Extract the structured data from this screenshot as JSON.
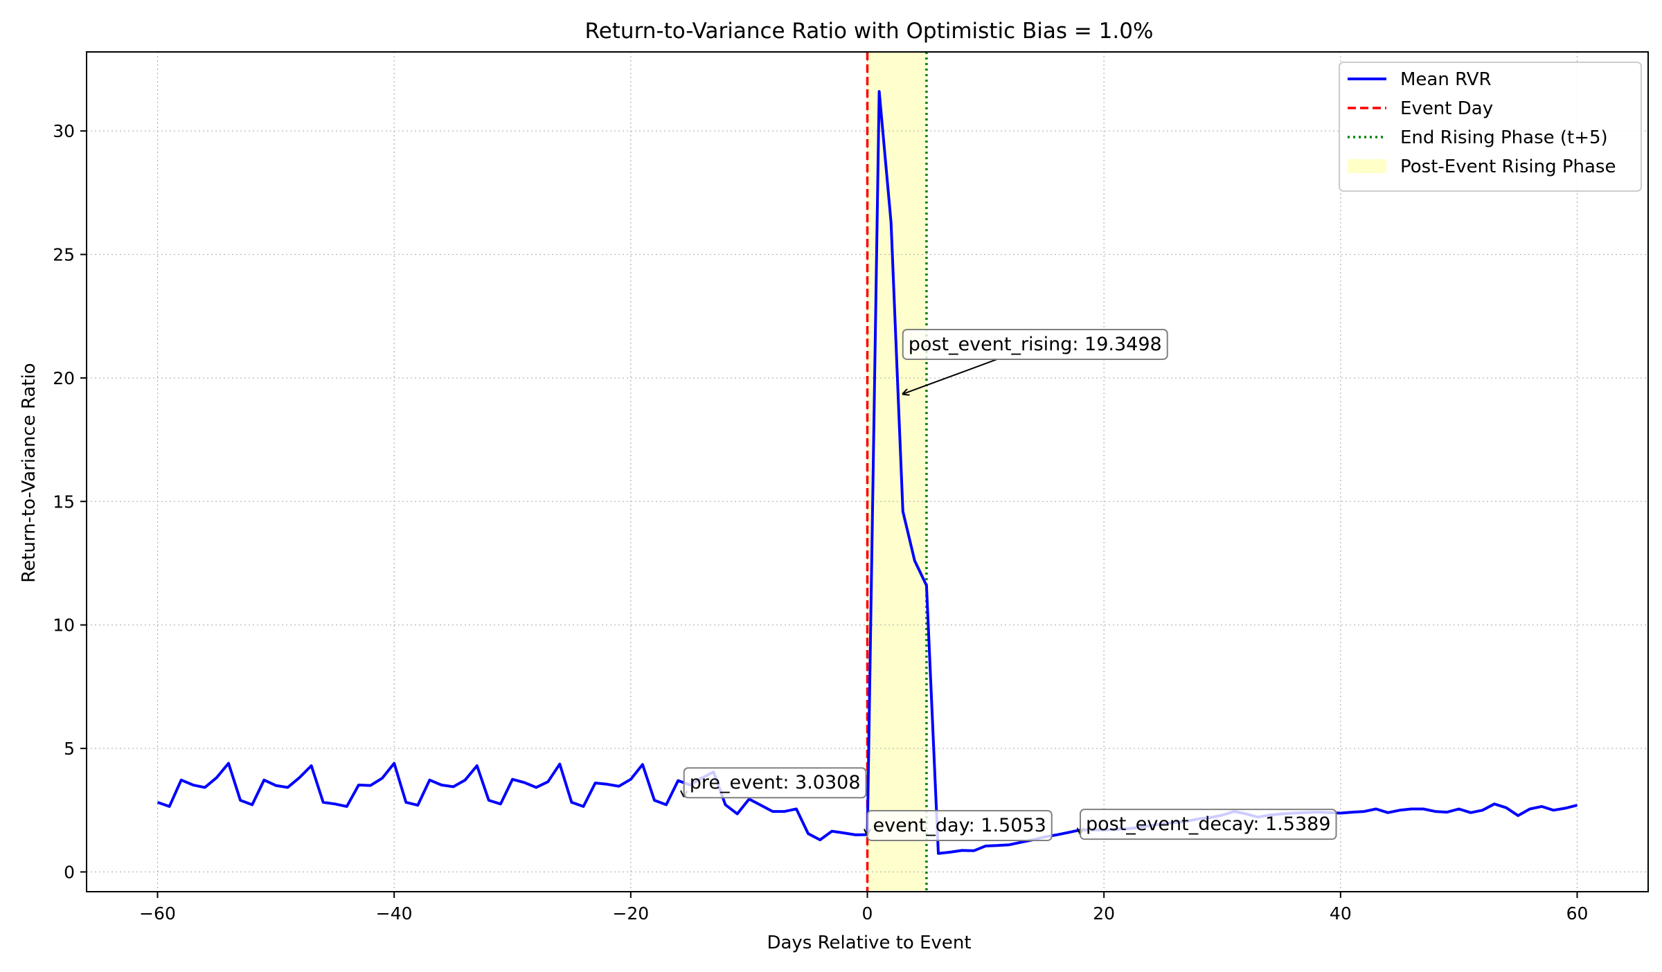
{
  "chart_data": {
    "type": "line",
    "title": "Return-to-Variance Ratio with Optimistic Bias = 1.0%",
    "xlabel": "Days Relative to Event",
    "ylabel": "Return-to-Variance Ratio",
    "xlim": [
      -66,
      66
    ],
    "ylim": [
      -0.8,
      33.2
    ],
    "x_ticks": [
      -60,
      -40,
      -20,
      0,
      20,
      40,
      60
    ],
    "x_tick_labels": [
      "−60",
      "−40",
      "−20",
      "0",
      "20",
      "40",
      "60"
    ],
    "y_ticks": [
      0,
      5,
      10,
      15,
      20,
      25,
      30
    ],
    "y_tick_labels": [
      "0",
      "5",
      "10",
      "15",
      "20",
      "25",
      "30"
    ],
    "grid": true,
    "legend_position": "top-right",
    "legend": [
      {
        "label": "Mean RVR",
        "kind": "line",
        "color": "#0000ff"
      },
      {
        "label": "Event Day",
        "kind": "dashed",
        "color": "#ff0000"
      },
      {
        "label": "End Rising Phase (t+5)",
        "kind": "dotted",
        "color": "#008000"
      },
      {
        "label": "Post-Event Rising Phase",
        "kind": "patch",
        "color": "#ffffc8"
      }
    ],
    "shaded_region": {
      "x_start": 0,
      "x_end": 5,
      "color": "#ffffc8"
    },
    "vertical_lines": [
      {
        "x": 0,
        "style": "dashed",
        "color": "#ff0000"
      },
      {
        "x": 5,
        "style": "dotted",
        "color": "#008000"
      }
    ],
    "series": [
      {
        "name": "Mean RVR",
        "color": "#0000ff",
        "x_start": -60,
        "x_step": 1,
        "values": [
          2.82,
          2.65,
          3.72,
          3.52,
          3.42,
          3.82,
          4.4,
          2.9,
          2.72,
          3.72,
          3.5,
          3.42,
          3.82,
          4.3,
          2.82,
          2.75,
          2.65,
          3.52,
          3.5,
          3.8,
          4.4,
          2.82,
          2.7,
          3.72,
          3.52,
          3.45,
          3.72,
          4.3,
          2.9,
          2.75,
          3.75,
          3.62,
          3.42,
          3.65,
          4.37,
          2.82,
          2.65,
          3.6,
          3.55,
          3.47,
          3.75,
          4.35,
          2.9,
          2.72,
          3.7,
          3.52,
          3.8,
          4.05,
          2.72,
          2.35,
          2.95,
          2.7,
          2.45,
          2.45,
          2.55,
          1.55,
          1.3,
          1.65,
          1.58,
          1.5,
          1.51,
          31.6,
          26.3,
          14.6,
          12.6,
          11.6,
          0.75,
          0.8,
          0.87,
          0.86,
          1.05,
          1.07,
          1.1,
          1.2,
          1.3,
          1.42,
          1.5,
          1.6,
          1.7,
          1.7,
          1.7,
          1.72,
          1.75,
          1.8,
          1.88,
          1.95,
          2.0,
          2.05,
          2.15,
          2.2,
          2.3,
          2.45,
          2.35,
          2.22,
          2.3,
          2.35,
          2.38,
          2.4,
          2.42,
          2.4,
          2.38,
          2.42,
          2.45,
          2.55,
          2.4,
          2.5,
          2.55,
          2.55,
          2.45,
          2.42,
          2.55,
          2.4,
          2.5,
          2.75,
          2.6,
          2.28,
          2.55,
          2.65,
          2.5,
          2.58,
          2.7
        ]
      }
    ],
    "annotations": [
      {
        "text": "post_event_rising: 19.3498",
        "point": [
          3,
          19.35
        ],
        "label_at": [
          3,
          21.4
        ]
      },
      {
        "text": "pre_event: 3.0308",
        "point": [
          -15.5,
          3.05
        ],
        "label_at": [
          -15.5,
          3.65
        ]
      },
      {
        "text": "event_day: 1.5053",
        "point": [
          0,
          1.5
        ],
        "label_at": [
          0,
          1.92
        ]
      },
      {
        "text": "post_event_decay: 1.5389",
        "point": [
          18,
          1.54
        ],
        "label_at": [
          18,
          1.97
        ]
      }
    ]
  }
}
